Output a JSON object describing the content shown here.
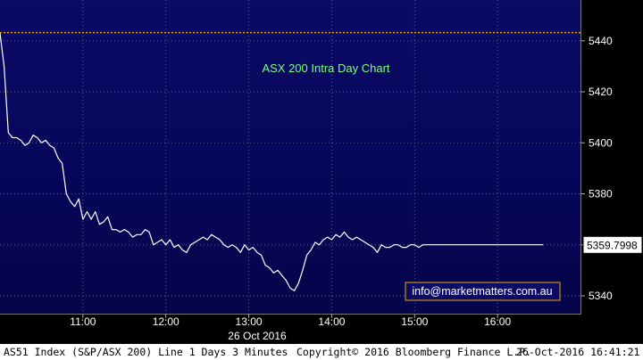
{
  "chart_data": {
    "type": "line",
    "title": "ASX 200 Intra Day Chart",
    "xlabel": "26 Oct 2016",
    "ylabel": "",
    "x_tick_labels": [
      "11:00",
      "12:00",
      "13:00",
      "14:00",
      "15:00",
      "16:00"
    ],
    "x_ticks_min": [
      60,
      120,
      180,
      240,
      300,
      360
    ],
    "xlim_min": [
      0,
      420
    ],
    "y_ticks": [
      5340,
      5360,
      5380,
      5400,
      5420,
      5440
    ],
    "ylim": [
      5333,
      5456
    ],
    "reference_line": 5443.2,
    "last_value": 5359.7998,
    "last_value_label": "5359.7998",
    "grid": true,
    "series": [
      {
        "x_min": [
          0,
          3,
          6,
          9,
          12,
          15,
          18,
          21,
          24,
          27,
          30,
          33,
          36,
          39,
          42,
          45,
          48,
          51,
          54,
          57,
          60,
          63,
          66,
          69,
          72,
          75,
          78,
          81,
          84,
          87,
          90,
          93,
          96,
          99,
          102,
          105,
          108,
          111,
          114,
          117,
          120,
          123,
          126,
          129,
          132,
          135,
          138,
          141,
          144,
          147,
          150,
          153,
          156,
          159,
          162,
          165,
          168,
          171,
          174,
          177,
          180,
          183,
          186,
          189,
          192,
          195,
          198,
          201,
          204,
          207,
          210,
          213,
          216,
          219,
          222,
          225,
          228,
          231,
          234,
          237,
          240,
          243,
          246,
          249,
          252,
          255,
          258,
          261,
          264,
          267,
          270,
          273,
          276,
          279,
          282,
          285,
          288,
          291,
          294,
          297,
          300,
          303,
          306,
          309,
          312,
          315,
          318,
          321,
          324,
          327,
          330,
          333,
          336,
          339,
          342,
          345,
          348,
          351,
          354,
          357,
          360,
          363,
          366,
          369,
          372,
          375,
          378,
          381,
          384,
          387,
          390,
          393
        ],
        "y": [
          5443,
          5430,
          5404,
          5402,
          5402,
          5401,
          5399,
          5400,
          5403,
          5402,
          5400,
          5401,
          5399,
          5398,
          5394,
          5392,
          5380,
          5377,
          5375,
          5378,
          5370,
          5373,
          5370,
          5373,
          5368,
          5369,
          5371,
          5366,
          5366,
          5365,
          5366,
          5365,
          5363,
          5364,
          5364,
          5366,
          5365,
          5360,
          5361,
          5362,
          5360,
          5362,
          5359,
          5360,
          5358,
          5357,
          5360,
          5361,
          5362,
          5363,
          5362,
          5364,
          5363,
          5362,
          5360,
          5359,
          5360,
          5359,
          5357,
          5360,
          5358,
          5359,
          5357,
          5356,
          5352,
          5351,
          5349,
          5350,
          5348,
          5346,
          5343,
          5342,
          5345,
          5350,
          5356,
          5358,
          5361,
          5360,
          5362,
          5363,
          5362,
          5364,
          5363,
          5365,
          5363,
          5362,
          5363,
          5362,
          5361,
          5360,
          5359,
          5357,
          5360,
          5359,
          5359,
          5360,
          5360,
          5359,
          5359,
          5360,
          5360,
          5359,
          5360,
          5360,
          5360,
          5360,
          5360,
          5360,
          5360,
          5360,
          5360,
          5360,
          5360,
          5360,
          5360,
          5360,
          5360,
          5360,
          5360,
          5360,
          5360,
          5360,
          5360,
          5360,
          5360,
          5360,
          5360,
          5360,
          5360,
          5360,
          5360,
          5360
        ]
      }
    ]
  },
  "footer": {
    "security": "AS51 Index (S&P/ASX 200) Line 1 Days 3 Minutes",
    "copyright": "Copyright© 2016 Bloomberg Finance L.P.",
    "timestamp": "26-Oct-2016 16:41:21"
  },
  "watermark": "info@marketmatters.com.au",
  "colors": {
    "line": "#ffffff",
    "reference": "#f0a500",
    "title": "#7dff7d",
    "grid": "#5a5a9a",
    "watermark_border": "#f0a500"
  }
}
